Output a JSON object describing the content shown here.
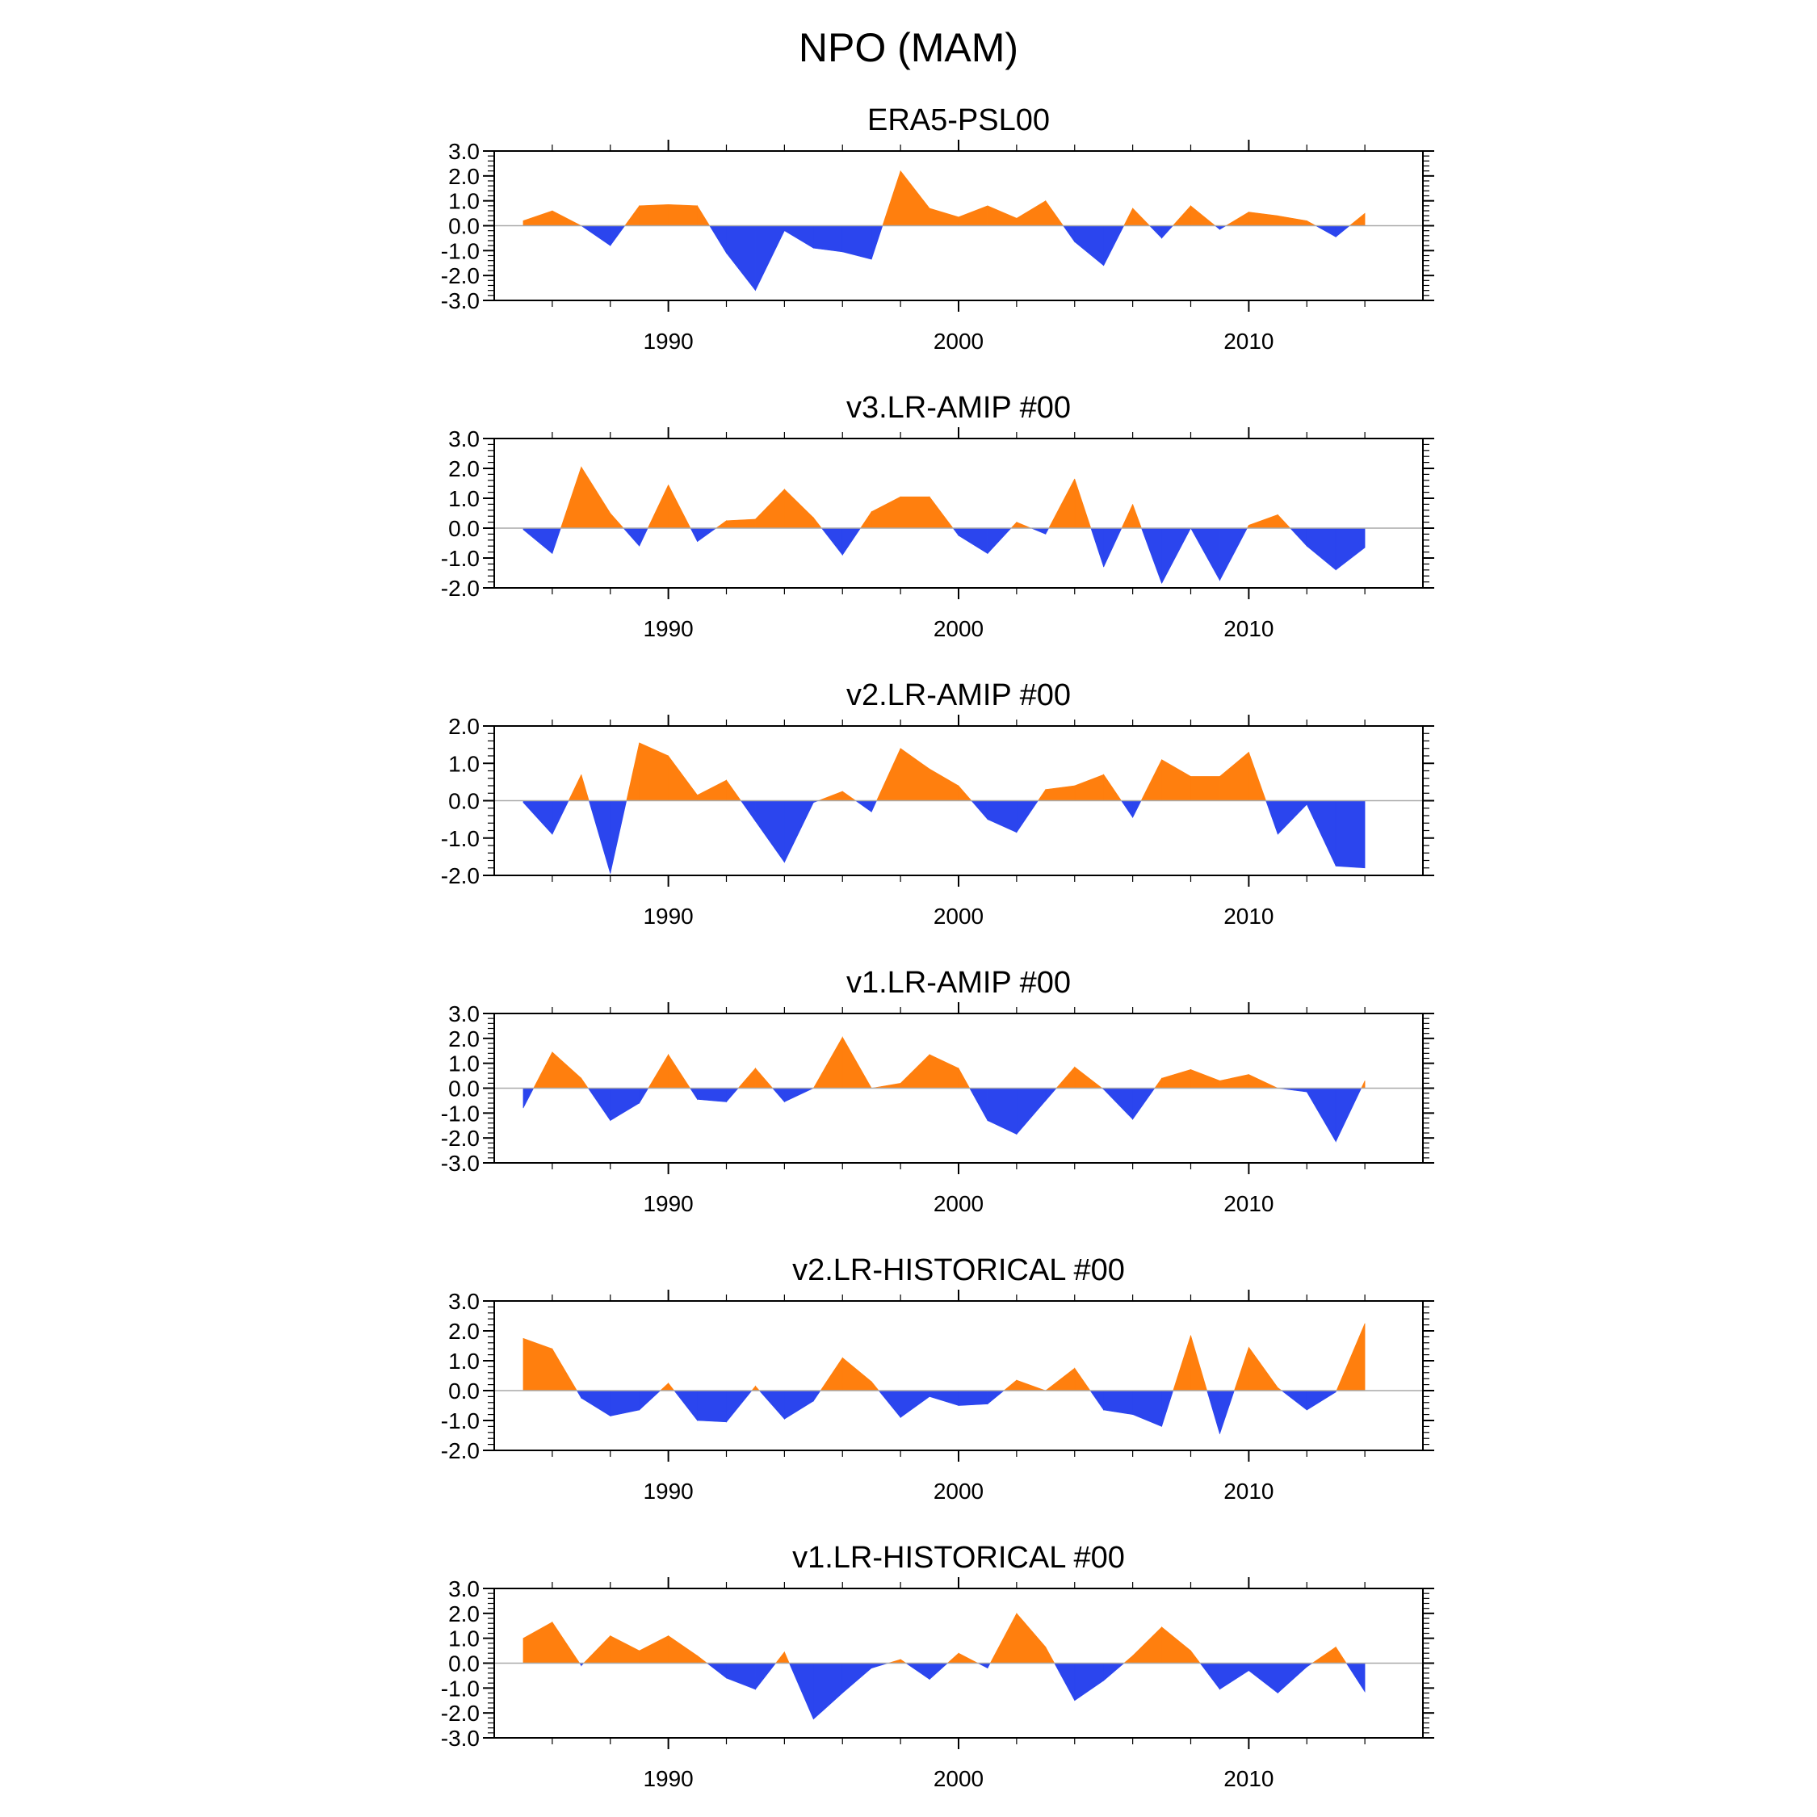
{
  "title": "NPO (MAM)",
  "colors": {
    "positive": "#ff7f0e",
    "negative": "#2b45ee",
    "axis": "#000000",
    "zero_line": "#a9a9a9"
  },
  "chart_data": [
    {
      "type": "area",
      "title": "ERA5-PSL00",
      "x": [
        1985,
        1986,
        1987,
        1988,
        1989,
        1990,
        1991,
        1992,
        1993,
        1994,
        1995,
        1996,
        1997,
        1998,
        1999,
        2000,
        2001,
        2002,
        2003,
        2004,
        2005,
        2006,
        2007,
        2008,
        2009,
        2010,
        2011,
        2012,
        2013,
        2014
      ],
      "y": [
        0.2,
        0.6,
        0.0,
        -0.8,
        0.8,
        0.85,
        0.8,
        -1.1,
        -2.6,
        -0.2,
        -0.9,
        -1.05,
        -1.35,
        2.2,
        0.7,
        0.35,
        0.8,
        0.3,
        1.0,
        -0.65,
        -1.6,
        0.7,
        -0.5,
        0.8,
        -0.15,
        0.55,
        0.4,
        0.2,
        -0.45,
        0.5
      ],
      "ylim": [
        -3.0,
        3.0
      ],
      "yticks": [
        3.0,
        2.0,
        1.0,
        0.0,
        -1.0,
        -2.0,
        -3.0
      ],
      "ytick_labels": [
        "3.0",
        "2.0",
        "1.0",
        "0.0",
        "-1.0",
        "-2.0",
        "-3.0"
      ],
      "xlim": [
        1984,
        2016
      ],
      "xticks": [
        1990,
        2000,
        2010
      ],
      "xtick_labels": [
        "1990",
        "2000",
        "2010"
      ]
    },
    {
      "type": "area",
      "title": "v3.LR-AMIP  #00",
      "x": [
        1985,
        1986,
        1987,
        1988,
        1989,
        1990,
        1991,
        1992,
        1993,
        1994,
        1995,
        1996,
        1997,
        1998,
        1999,
        2000,
        2001,
        2002,
        2003,
        2004,
        2005,
        2006,
        2007,
        2008,
        2009,
        2010,
        2011,
        2012,
        2013,
        2014
      ],
      "y": [
        -0.05,
        -0.85,
        2.05,
        0.5,
        -0.6,
        1.45,
        -0.45,
        0.25,
        0.3,
        1.3,
        0.35,
        -0.9,
        0.55,
        1.05,
        1.05,
        -0.25,
        -0.85,
        0.2,
        -0.2,
        1.65,
        -1.3,
        0.8,
        -1.85,
        0.0,
        -1.75,
        0.1,
        0.45,
        -0.6,
        -1.4,
        -0.65
      ],
      "ylim": [
        -2.0,
        3.0
      ],
      "yticks": [
        3.0,
        2.0,
        1.0,
        0.0,
        -1.0,
        -2.0
      ],
      "ytick_labels": [
        "3.0",
        "2.0",
        "1.0",
        "0.0",
        "-1.0",
        "-2.0"
      ],
      "xlim": [
        1984,
        2016
      ],
      "xticks": [
        1990,
        2000,
        2010
      ],
      "xtick_labels": [
        "1990",
        "2000",
        "2010"
      ]
    },
    {
      "type": "area",
      "title": "v2.LR-AMIP  #00",
      "x": [
        1985,
        1986,
        1987,
        1988,
        1989,
        1990,
        1991,
        1992,
        1993,
        1994,
        1995,
        1996,
        1997,
        1998,
        1999,
        2000,
        2001,
        2002,
        2003,
        2004,
        2005,
        2006,
        2007,
        2008,
        2009,
        2010,
        2011,
        2012,
        2013,
        2014
      ],
      "y": [
        -0.05,
        -0.9,
        0.7,
        -1.95,
        1.55,
        1.2,
        0.15,
        0.55,
        -0.55,
        -1.65,
        -0.05,
        0.25,
        -0.3,
        1.4,
        0.85,
        0.4,
        -0.5,
        -0.85,
        0.3,
        0.4,
        0.7,
        -0.45,
        1.1,
        0.65,
        0.65,
        1.3,
        -0.9,
        -0.1,
        -1.75,
        -1.8
      ],
      "ylim": [
        -2.0,
        2.0
      ],
      "yticks": [
        2.0,
        1.0,
        0.0,
        -1.0,
        -2.0
      ],
      "ytick_labels": [
        "2.0",
        "1.0",
        "0.0",
        "-1.0",
        "-2.0"
      ],
      "xlim": [
        1984,
        2016
      ],
      "xticks": [
        1990,
        2000,
        2010
      ],
      "xtick_labels": [
        "1990",
        "2000",
        "2010"
      ]
    },
    {
      "type": "area",
      "title": "v1.LR-AMIP  #00",
      "x": [
        1985,
        1986,
        1987,
        1988,
        1989,
        1990,
        1991,
        1992,
        1993,
        1994,
        1995,
        1996,
        1997,
        1998,
        1999,
        2000,
        2001,
        2002,
        2003,
        2004,
        2005,
        2006,
        2007,
        2008,
        2009,
        2010,
        2011,
        2012,
        2013,
        2014
      ],
      "y": [
        -0.8,
        1.45,
        0.4,
        -1.3,
        -0.6,
        1.35,
        -0.45,
        -0.55,
        0.8,
        -0.55,
        0.0,
        2.05,
        0.0,
        0.2,
        1.35,
        0.8,
        -1.3,
        -1.85,
        -0.5,
        0.85,
        -0.05,
        -1.25,
        0.4,
        0.75,
        0.3,
        0.55,
        0.0,
        -0.15,
        -2.15,
        0.3
      ],
      "ylim": [
        -3.0,
        3.0
      ],
      "yticks": [
        3.0,
        2.0,
        1.0,
        0.0,
        -1.0,
        -2.0,
        -3.0
      ],
      "ytick_labels": [
        "3.0",
        "2.0",
        "1.0",
        "0.0",
        "-1.0",
        "-2.0",
        "-3.0"
      ],
      "xlim": [
        1984,
        2016
      ],
      "xticks": [
        1990,
        2000,
        2010
      ],
      "xtick_labels": [
        "1990",
        "2000",
        "2010"
      ]
    },
    {
      "type": "area",
      "title": "v2.LR-HISTORICAL  #00",
      "x": [
        1985,
        1986,
        1987,
        1988,
        1989,
        1990,
        1991,
        1992,
        1993,
        1994,
        1995,
        1996,
        1997,
        1998,
        1999,
        2000,
        2001,
        2002,
        2003,
        2004,
        2005,
        2006,
        2007,
        2008,
        2009,
        2010,
        2011,
        2012,
        2013,
        2014
      ],
      "y": [
        1.75,
        1.4,
        -0.25,
        -0.85,
        -0.65,
        0.25,
        -1.0,
        -1.05,
        0.15,
        -0.95,
        -0.35,
        1.1,
        0.3,
        -0.9,
        -0.2,
        -0.5,
        -0.45,
        0.35,
        0.0,
        0.75,
        -0.65,
        -0.8,
        -1.2,
        1.85,
        -1.45,
        1.45,
        0.1,
        -0.65,
        -0.05,
        2.25
      ],
      "ylim": [
        -2.0,
        3.0
      ],
      "yticks": [
        3.0,
        2.0,
        1.0,
        0.0,
        -1.0,
        -2.0
      ],
      "ytick_labels": [
        "3.0",
        "2.0",
        "1.0",
        "0.0",
        "-1.0",
        "-2.0"
      ],
      "xlim": [
        1984,
        2016
      ],
      "xticks": [
        1990,
        2000,
        2010
      ],
      "xtick_labels": [
        "1990",
        "2000",
        "2010"
      ]
    },
    {
      "type": "area",
      "title": "v1.LR-HISTORICAL  #00",
      "x": [
        1985,
        1986,
        1987,
        1988,
        1989,
        1990,
        1991,
        1992,
        1993,
        1994,
        1995,
        1996,
        1997,
        1998,
        1999,
        2000,
        2001,
        2002,
        2003,
        2004,
        2005,
        2006,
        2007,
        2008,
        2009,
        2010,
        2011,
        2012,
        2013,
        2014
      ],
      "y": [
        1.0,
        1.65,
        -0.1,
        1.1,
        0.5,
        1.1,
        0.3,
        -0.6,
        -1.05,
        0.45,
        -2.25,
        -1.2,
        -0.2,
        0.15,
        -0.65,
        0.4,
        -0.2,
        2.0,
        0.65,
        -1.5,
        -0.7,
        0.3,
        1.45,
        0.5,
        -1.05,
        -0.3,
        -1.2,
        -0.15,
        0.65,
        -1.15
      ],
      "ylim": [
        -3.0,
        3.0
      ],
      "yticks": [
        3.0,
        2.0,
        1.0,
        0.0,
        -1.0,
        -2.0,
        -3.0
      ],
      "ytick_labels": [
        "3.0",
        "2.0",
        "1.0",
        "0.0",
        "-1.0",
        "-2.0",
        "-3.0"
      ],
      "xlim": [
        1984,
        2016
      ],
      "xticks": [
        1990,
        2000,
        2010
      ],
      "xtick_labels": [
        "1990",
        "2000",
        "2010"
      ]
    }
  ]
}
